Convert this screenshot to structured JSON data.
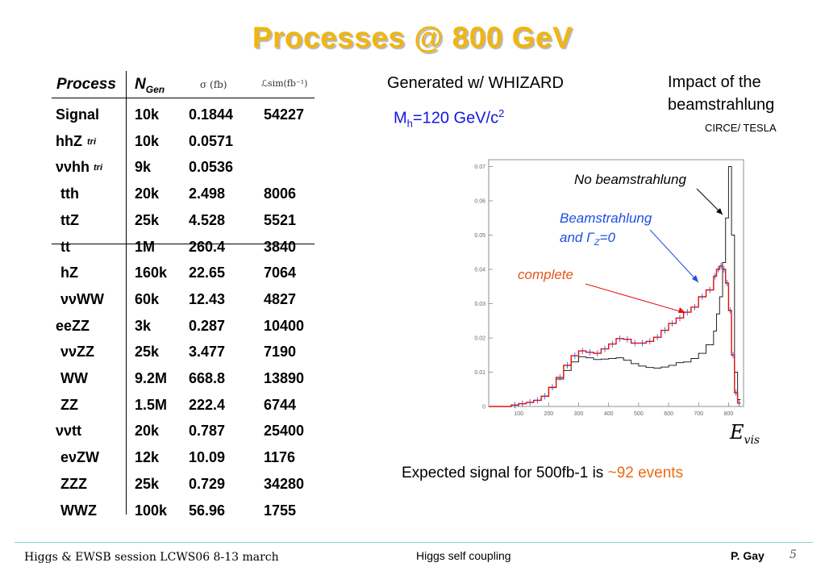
{
  "title": "Processes @ 800 GeV",
  "table": {
    "headers": {
      "process": "Process",
      "ngen_main": "N",
      "ngen_sub": "Gen",
      "sigma": "σ (fb)",
      "lumi": "ℒsim(fb⁻¹)"
    },
    "rows": [
      {
        "process": "Signal",
        "tag": "",
        "ngen": "10k",
        "sigma": "0.1844",
        "lumi": "54227"
      },
      {
        "process": "hhZ",
        "tag": "tri",
        "ngen": "10k",
        "sigma": "0.0571",
        "lumi": ""
      },
      {
        "process": "ννhh",
        "tag": "tri",
        "ngen": "9k",
        "sigma": "0.0536",
        "lumi": ""
      },
      {
        "process": "tth",
        "tag": "",
        "ngen": "20k",
        "sigma": "2.498",
        "lumi": "8006"
      },
      {
        "process": "ttZ",
        "tag": "",
        "ngen": "25k",
        "sigma": "4.528",
        "lumi": "5521"
      },
      {
        "process": "tt",
        "tag": "",
        "ngen": "1M",
        "sigma": "260.4",
        "lumi": "3840"
      },
      {
        "process": "hZ",
        "tag": "",
        "ngen": "160k",
        "sigma": "22.65",
        "lumi": "7064"
      },
      {
        "process": "ννWW",
        "tag": "",
        "ngen": "60k",
        "sigma": "12.43",
        "lumi": "4827"
      },
      {
        "process": "eeZZ",
        "tag": "",
        "ngen": "3k",
        "sigma": "0.287",
        "lumi": "10400"
      },
      {
        "process": "ννZZ",
        "tag": "",
        "ngen": "25k",
        "sigma": "3.477",
        "lumi": "7190"
      },
      {
        "process": "WW",
        "tag": "",
        "ngen": "9.2M",
        "sigma": "668.8",
        "lumi": "13890"
      },
      {
        "process": "ZZ",
        "tag": "",
        "ngen": "1.5M",
        "sigma": "222.4",
        "lumi": "6744"
      },
      {
        "process": "ννtt",
        "tag": "",
        "ngen": "20k",
        "sigma": "0.787",
        "lumi": "25400"
      },
      {
        "process": "eνZW",
        "tag": "",
        "ngen": "12k",
        "sigma": "10.09",
        "lumi": "1176"
      },
      {
        "process": "ZZZ",
        "tag": "",
        "ngen": "25k",
        "sigma": "0.729",
        "lumi": "34280"
      },
      {
        "process": "WWZ",
        "tag": "",
        "ngen": "100k",
        "sigma": "56.96",
        "lumi": "1755"
      }
    ]
  },
  "generated": "Generated w/ WHIZARD",
  "mass": {
    "prefix": "M",
    "sub": "h",
    "value": "=120 GeV/c",
    "sup": "2"
  },
  "impact": {
    "line1": "Impact of the",
    "line2": "beamstrahlung",
    "source": "CIRCE/ TESLA"
  },
  "plot": {
    "label_no_beam": "No beamstrahlung",
    "label_beam_1": "Beamstrahlung",
    "label_beam_2": "and Γ",
    "label_beam_sub": "Z",
    "label_beam_3": "=0",
    "label_complete": "complete",
    "colors": {
      "no_beam": "#222222",
      "beam": "#1d4fe0",
      "complete": "#e01010"
    }
  },
  "chart_data": {
    "type": "line",
    "x_ticks": [
      100,
      200,
      300,
      400,
      500,
      600,
      700,
      800
    ],
    "y_ticks": [
      0,
      0.01,
      0.02,
      0.03,
      0.04,
      0.05,
      0.06,
      0.07
    ],
    "xlim": [
      0,
      850
    ],
    "ylim": [
      0,
      0.072
    ],
    "x": [
      0,
      25,
      50,
      75,
      100,
      125,
      150,
      175,
      200,
      225,
      250,
      275,
      300,
      325,
      350,
      375,
      400,
      425,
      450,
      475,
      500,
      525,
      550,
      575,
      600,
      625,
      650,
      675,
      700,
      725,
      750,
      760,
      770,
      780,
      790,
      800,
      810,
      820,
      830,
      840
    ],
    "series": [
      {
        "name": "No beamstrahlung",
        "values": [
          0,
          0,
          0,
          0.0004,
          0.0008,
          0.0012,
          0.0018,
          0.003,
          0.0055,
          0.008,
          0.0105,
          0.013,
          0.0145,
          0.0142,
          0.0137,
          0.0138,
          0.014,
          0.0142,
          0.0135,
          0.0125,
          0.0118,
          0.0114,
          0.0112,
          0.0115,
          0.012,
          0.0128,
          0.013,
          0.014,
          0.0155,
          0.018,
          0.022,
          0.027,
          0.032,
          0.042,
          0.055,
          0.07,
          0.05,
          0.01,
          0.002,
          0
        ]
      },
      {
        "name": "complete",
        "values": [
          0,
          0,
          0,
          0.0004,
          0.0008,
          0.0012,
          0.0018,
          0.003,
          0.0056,
          0.0085,
          0.012,
          0.0148,
          0.0162,
          0.0158,
          0.0155,
          0.0168,
          0.0182,
          0.0198,
          0.0196,
          0.0185,
          0.0185,
          0.019,
          0.0202,
          0.0222,
          0.0242,
          0.0258,
          0.0275,
          0.029,
          0.032,
          0.034,
          0.038,
          0.04,
          0.041,
          0.04,
          0.036,
          0.028,
          0.015,
          0.004,
          0.001,
          0
        ]
      }
    ]
  },
  "evis": {
    "main": "E",
    "sub": "vis"
  },
  "expected": {
    "text": "Expected signal for 500fb-1 is ",
    "highlight": "~92 events"
  },
  "footer": {
    "session": "Higgs & EWSB session LCWS06 8-13 march",
    "topic": "Higgs self coupling",
    "author": "P.  Gay",
    "page": "5"
  }
}
